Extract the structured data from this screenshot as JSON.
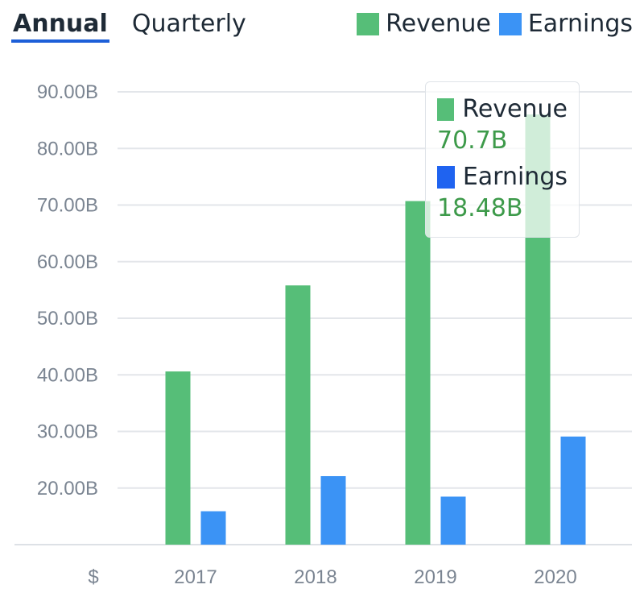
{
  "tabs": [
    {
      "label": "Annual",
      "active": true
    },
    {
      "label": "Quarterly",
      "active": false
    }
  ],
  "legend": [
    {
      "label": "Revenue",
      "color": "#56be78"
    },
    {
      "label": "Earnings",
      "color": "#3b93f5"
    }
  ],
  "tooltip": {
    "items": [
      {
        "label": "Revenue",
        "value": "70.7B",
        "color": "#56be78"
      },
      {
        "label": "Earnings",
        "value": "18.48B",
        "color": "#1f63f0"
      }
    ]
  },
  "chart_data": {
    "type": "bar",
    "categories": [
      "2017",
      "2018",
      "2019",
      "2020"
    ],
    "series": [
      {
        "name": "Revenue",
        "values": [
          40.6,
          55.8,
          70.7,
          86.0
        ],
        "color": "#56be78"
      },
      {
        "name": "Earnings",
        "values": [
          15.9,
          22.1,
          18.48,
          29.1
        ],
        "color": "#3b93f5"
      }
    ],
    "yticks": [
      "90.00B",
      "80.00B",
      "70.00B",
      "60.00B",
      "50.00B",
      "40.00B",
      "30.00B",
      "20.00B"
    ],
    "ytick_values": [
      90,
      80,
      70,
      60,
      50,
      40,
      30,
      20
    ],
    "y_unit_label": "$",
    "ylim": [
      10,
      90
    ],
    "grid": true
  }
}
